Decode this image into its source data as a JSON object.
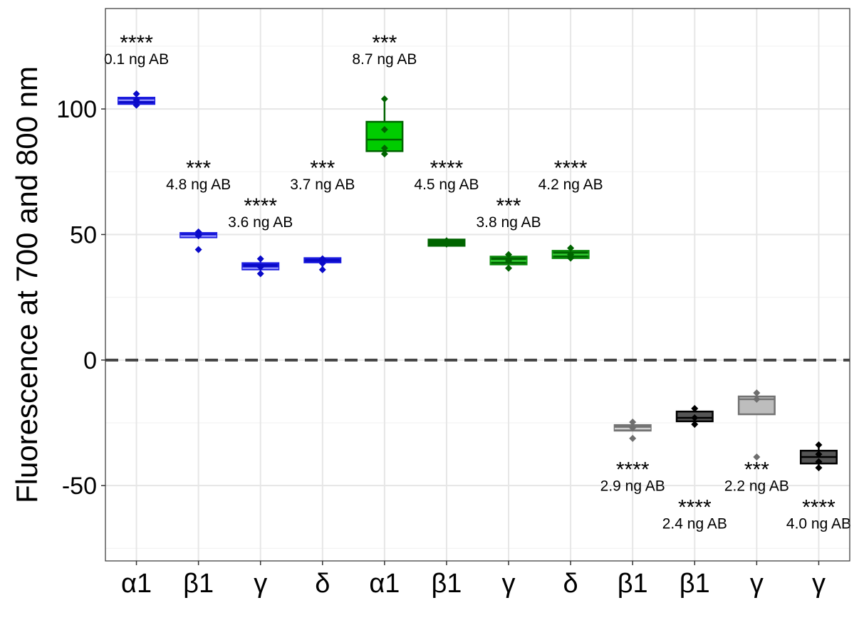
{
  "chart_data": {
    "type": "box",
    "title": "",
    "xlabel": "",
    "ylabel": "Fluorescence at 700 and 800 nm",
    "ylim": [
      -80,
      140
    ],
    "yticks": [
      -50,
      0,
      50,
      100
    ],
    "ytick_labels": [
      "-50",
      "0",
      "50",
      "100"
    ],
    "grid": true,
    "reference_line": {
      "y": 0,
      "style": "dashed",
      "color": "#444444"
    },
    "categories": [
      "α1",
      "β1",
      "γ",
      "δ",
      "α1",
      "β1",
      "γ",
      "δ",
      "β1",
      "β1",
      "γ",
      "γ"
    ],
    "boxes": [
      {
        "q1": 102,
        "median": 103.5,
        "q3": 104.5,
        "whisker_low": 101.5,
        "whisker_high": 106,
        "points": [
          106,
          103.5,
          101.5
        ],
        "fill": "#0a0ac8",
        "stroke": "#1c1ce0",
        "median_color": "#8c8cff",
        "stars": "****",
        "label": "0.1 ng AB",
        "label_y": 127
      },
      {
        "q1": 48.9,
        "median": 49.4,
        "q3": 50.6,
        "whisker_low": 48.9,
        "whisker_high": 51,
        "points": [
          51,
          49.5,
          44
        ],
        "fill": "#0a0ac8",
        "stroke": "#1c1ce0",
        "median_color": "#8c8cff",
        "stars": "***",
        "label": "4.8 ng AB",
        "label_y": 77
      },
      {
        "q1": 36.1,
        "median": 36.6,
        "q3": 38.6,
        "whisker_low": 34.4,
        "whisker_high": 40.3,
        "points": [
          40.3,
          37,
          34.4
        ],
        "fill": "#0a0ac8",
        "stroke": "#1c1ce0",
        "median_color": "#8c8cff",
        "stars": "****",
        "label": "3.6 ng AB",
        "label_y": 62
      },
      {
        "q1": 38.9,
        "median": 39.5,
        "q3": 40.6,
        "whisker_low": 36,
        "whisker_high": 40.6,
        "points": [
          40.3,
          38.5,
          36
        ],
        "fill": "#0a0ac8",
        "stroke": "#1c1ce0",
        "median_color": "#0a0ac8",
        "stars": "***",
        "label": "3.7 ng AB",
        "label_y": 77
      },
      {
        "q1": 83.2,
        "median": 87.8,
        "q3": 94.9,
        "whisker_low": 82.1,
        "whisker_high": 104,
        "points": [
          104,
          91.8,
          84.4,
          82.1
        ],
        "fill": "#00cc00",
        "stroke": "#006400",
        "median_color": "#006400",
        "stars": "***",
        "label": "8.7 ng AB",
        "label_y": 127
      },
      {
        "q1": 45.5,
        "median": 46.9,
        "q3": 48,
        "whisker_low": 45.5,
        "whisker_high": 48,
        "points": [
          47.5,
          46.9,
          46.2
        ],
        "fill": "#006400",
        "stroke": "#006400",
        "median_color": "#006400",
        "stars": "****",
        "label": "4.5 ng AB",
        "label_y": 77
      },
      {
        "q1": 38.1,
        "median": 39.5,
        "q3": 41.2,
        "whisker_low": 36.6,
        "whisker_high": 42,
        "points": [
          42,
          39.5,
          36.6
        ],
        "fill": "#006400",
        "stroke": "#0a8a0a",
        "median_color": "#33cc33",
        "stars": "***",
        "label": "3.8 ng AB",
        "label_y": 62
      },
      {
        "q1": 40.6,
        "median": 42,
        "q3": 43.5,
        "whisker_low": 40.6,
        "whisker_high": 44.6,
        "points": [
          44.6,
          42,
          40.6
        ],
        "fill": "#006400",
        "stroke": "#0a8a0a",
        "median_color": "#33cc33",
        "stars": "****",
        "label": "4.2 ng AB",
        "label_y": 77
      },
      {
        "q1": -28.1,
        "median": -27.3,
        "q3": -25.9,
        "whisker_low": -28.1,
        "whisker_high": -24.7,
        "points": [
          -24.7,
          -27,
          -31.2
        ],
        "fill": "#737373",
        "stroke": "#737373",
        "median_color": "#cfcfcf",
        "stars": "****",
        "label": "2.9 ng AB",
        "label_y": -43
      },
      {
        "q1": -24.4,
        "median": -23,
        "q3": -20.5,
        "whisker_low": -25.6,
        "whisker_high": -19.3,
        "points": [
          -19.3,
          -23,
          -25.6
        ],
        "fill": "#555555",
        "stroke": "#000000",
        "median_color": "#000000",
        "stars": "****",
        "label": "2.4 ng AB",
        "label_y": -58
      },
      {
        "q1": -21.6,
        "median": -15.6,
        "q3": -14.5,
        "whisker_low": -21.6,
        "whisker_high": -13.1,
        "points": [
          -13.1,
          -15.6,
          -38.6
        ],
        "fill": "#bdbdbd",
        "stroke": "#737373",
        "median_color": "#737373",
        "stars": "***",
        "label": "2.2 ng AB",
        "label_y": -43
      },
      {
        "q1": -41.2,
        "median": -38.6,
        "q3": -36.1,
        "whisker_low": -42.9,
        "whisker_high": -33.8,
        "points": [
          -33.8,
          -37.5,
          -40.5,
          -42.9
        ],
        "fill": "#555555",
        "stroke": "#000000",
        "median_color": "#000000",
        "stars": "****",
        "label": "4.0 ng AB",
        "label_y": -58
      }
    ]
  }
}
